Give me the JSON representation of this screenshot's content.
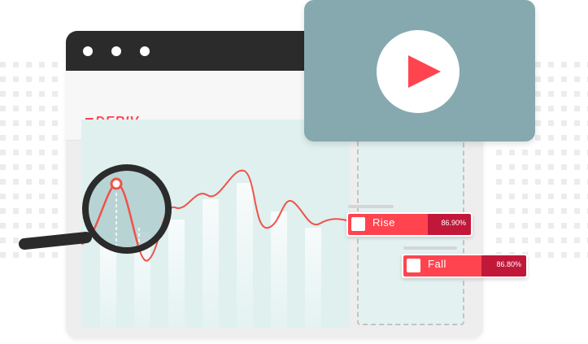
{
  "brand": {
    "logo_text": "DERIV",
    "accent": "#ff444f"
  },
  "video_panel": {
    "icon": "play-icon"
  },
  "trades": [
    {
      "label": "Rise",
      "payout": "86.90%"
    },
    {
      "label": "Fall",
      "payout": "86.80%"
    }
  ],
  "colors": {
    "titlebar": "#2b2b2b",
    "video_bg": "#85a9ae",
    "chart_bg": "#dff0ef",
    "line": "#f0524a",
    "trade_dark": "#c1183a"
  },
  "icons": [
    "magnifier-icon",
    "play-icon",
    "logo-chevron-icon"
  ]
}
